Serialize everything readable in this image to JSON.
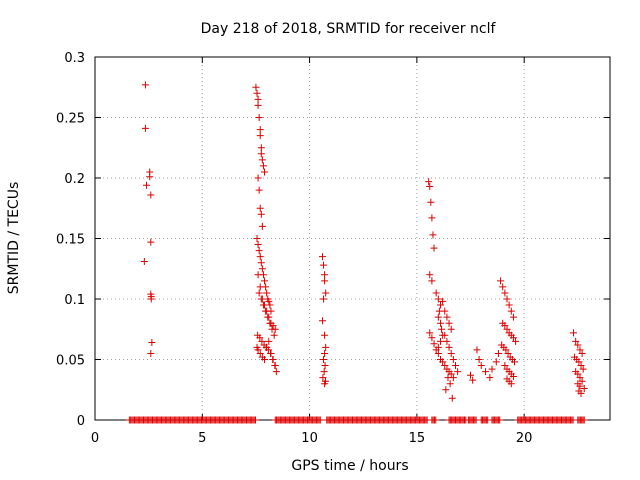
{
  "chart_data": {
    "type": "scatter",
    "title": "Day 218 of 2018, SRMTID for receiver nclf",
    "xlabel": "GPS time / hours",
    "ylabel": "SRMTID / TECUs",
    "xlim": [
      0,
      24
    ],
    "ylim": [
      0,
      0.3
    ],
    "xticks": [
      0,
      5,
      10,
      15,
      20
    ],
    "yticks": [
      0,
      0.05,
      0.1,
      0.15,
      0.2,
      0.25,
      0.3
    ],
    "xtick_labels": [
      "0",
      "5",
      "10",
      "15",
      "20"
    ],
    "ytick_labels": [
      "0",
      "0.05",
      "0.1",
      "0.15",
      "0.2",
      "0.25",
      "0.3"
    ],
    "grid": true,
    "legend": "none",
    "marker": "+",
    "color": "#dd0000",
    "series": [
      {
        "x": [
          2.35,
          2.35,
          2.4,
          2.55,
          2.55,
          2.6,
          2.6,
          2.3,
          2.6,
          2.62,
          2.65,
          2.6,
          2.62,
          7.5,
          7.55,
          7.6,
          7.6,
          7.65,
          7.7,
          7.7,
          7.75,
          7.75,
          7.8,
          7.85,
          7.9,
          7.6,
          7.65,
          7.7,
          7.75,
          7.8,
          7.55,
          7.6,
          7.65,
          7.7,
          7.75,
          7.8,
          7.85,
          7.9,
          7.95,
          8.0,
          8.05,
          8.1,
          8.15,
          8.2,
          7.6,
          7.7,
          7.8,
          7.9,
          8.0,
          8.1,
          8.2,
          8.3,
          8.4,
          7.65,
          7.75,
          7.85,
          7.95,
          8.05,
          8.15,
          8.25,
          8.35,
          7.55,
          7.6,
          7.7,
          7.8,
          7.9,
          8.0,
          8.1,
          8.2,
          8.3,
          8.4,
          7.58,
          7.68,
          7.78,
          7.88,
          7.98,
          8.08,
          8.18,
          8.28,
          8.38,
          8.45,
          10.6,
          10.65,
          10.7,
          10.7,
          10.75,
          10.65,
          10.6,
          10.7,
          10.75,
          10.7,
          10.65,
          10.72,
          10.68,
          10.62,
          10.7,
          10.74,
          15.55,
          15.6,
          15.65,
          15.7,
          15.75,
          15.8,
          15.6,
          15.7,
          15.9,
          16.0,
          16.1,
          16.05,
          16.0,
          16.1,
          16.15,
          16.2,
          16.1,
          16.0,
          16.2,
          16.3,
          16.4,
          16.5,
          16.6,
          16.3,
          16.4,
          16.5,
          16.6,
          16.7,
          16.8,
          16.9,
          16.45,
          16.55,
          16.35,
          16.65,
          15.6,
          15.7,
          15.8,
          15.9,
          16.0,
          16.1,
          16.2,
          16.3,
          16.4,
          16.5,
          16.6,
          16.7,
          17.5,
          17.6,
          17.8,
          17.9,
          18.0,
          18.2,
          18.4,
          18.5,
          18.7,
          18.8,
          18.9,
          19.0,
          19.1,
          19.2,
          19.3,
          19.4,
          19.5,
          19.0,
          19.1,
          19.2,
          19.3,
          19.4,
          19.5,
          19.6,
          18.95,
          19.05,
          19.15,
          19.25,
          19.35,
          19.45,
          19.55,
          19.1,
          19.2,
          19.3,
          19.4,
          19.5,
          19.2,
          19.3,
          19.4,
          22.3,
          22.4,
          22.5,
          22.6,
          22.7,
          22.35,
          22.45,
          22.55,
          22.65,
          22.75,
          22.4,
          22.5,
          22.6,
          22.7,
          22.5,
          22.6,
          22.8,
          22.55,
          22.65
        ],
        "y": [
          0.277,
          0.241,
          0.194,
          0.205,
          0.201,
          0.186,
          0.147,
          0.131,
          0.104,
          0.102,
          0.064,
          0.055,
          0.1,
          0.275,
          0.27,
          0.265,
          0.26,
          0.25,
          0.24,
          0.235,
          0.225,
          0.22,
          0.215,
          0.21,
          0.205,
          0.2,
          0.19,
          0.175,
          0.17,
          0.16,
          0.15,
          0.145,
          0.14,
          0.135,
          0.13,
          0.125,
          0.12,
          0.115,
          0.11,
          0.105,
          0.1,
          0.098,
          0.095,
          0.09,
          0.12,
          0.11,
          0.1,
          0.095,
          0.09,
          0.085,
          0.08,
          0.078,
          0.075,
          0.105,
          0.1,
          0.095,
          0.09,
          0.085,
          0.08,
          0.075,
          0.07,
          0.06,
          0.058,
          0.055,
          0.052,
          0.05,
          0.06,
          0.065,
          0.055,
          0.05,
          0.045,
          0.07,
          0.068,
          0.065,
          0.062,
          0.06,
          0.058,
          0.055,
          0.05,
          0.045,
          0.04,
          0.135,
          0.128,
          0.12,
          0.115,
          0.105,
          0.1,
          0.082,
          0.07,
          0.06,
          0.055,
          0.05,
          0.045,
          0.04,
          0.035,
          0.03,
          0.032,
          0.197,
          0.193,
          0.18,
          0.167,
          0.153,
          0.142,
          0.12,
          0.115,
          0.105,
          0.1,
          0.095,
          0.09,
          0.085,
          0.08,
          0.075,
          0.07,
          0.065,
          0.06,
          0.098,
          0.09,
          0.085,
          0.08,
          0.075,
          0.07,
          0.065,
          0.06,
          0.055,
          0.05,
          0.045,
          0.04,
          0.035,
          0.03,
          0.025,
          0.018,
          0.072,
          0.068,
          0.063,
          0.058,
          0.055,
          0.05,
          0.048,
          0.045,
          0.042,
          0.04,
          0.038,
          0.035,
          0.037,
          0.033,
          0.058,
          0.05,
          0.045,
          0.04,
          0.035,
          0.042,
          0.048,
          0.055,
          0.115,
          0.11,
          0.105,
          0.1,
          0.095,
          0.09,
          0.085,
          0.08,
          0.078,
          0.075,
          0.072,
          0.07,
          0.068,
          0.065,
          0.062,
          0.06,
          0.058,
          0.055,
          0.052,
          0.05,
          0.048,
          0.045,
          0.042,
          0.04,
          0.038,
          0.036,
          0.034,
          0.032,
          0.03,
          0.072,
          0.065,
          0.062,
          0.058,
          0.055,
          0.052,
          0.05,
          0.048,
          0.045,
          0.042,
          0.04,
          0.038,
          0.035,
          0.032,
          0.03,
          0.028,
          0.026,
          0.024,
          0.022
        ]
      },
      {
        "name": "",
        "x_ranges_at_zero": [
          [
            1.6,
            7.5
          ],
          [
            8.4,
            10.5
          ],
          [
            10.8,
            15.5
          ],
          [
            15.7,
            15.9
          ],
          [
            16.5,
            17.3
          ],
          [
            17.4,
            17.8
          ],
          [
            18.0,
            18.3
          ],
          [
            18.5,
            18.9
          ],
          [
            19.7,
            22.3
          ],
          [
            22.5,
            22.8
          ]
        ],
        "y": 0
      }
    ]
  }
}
